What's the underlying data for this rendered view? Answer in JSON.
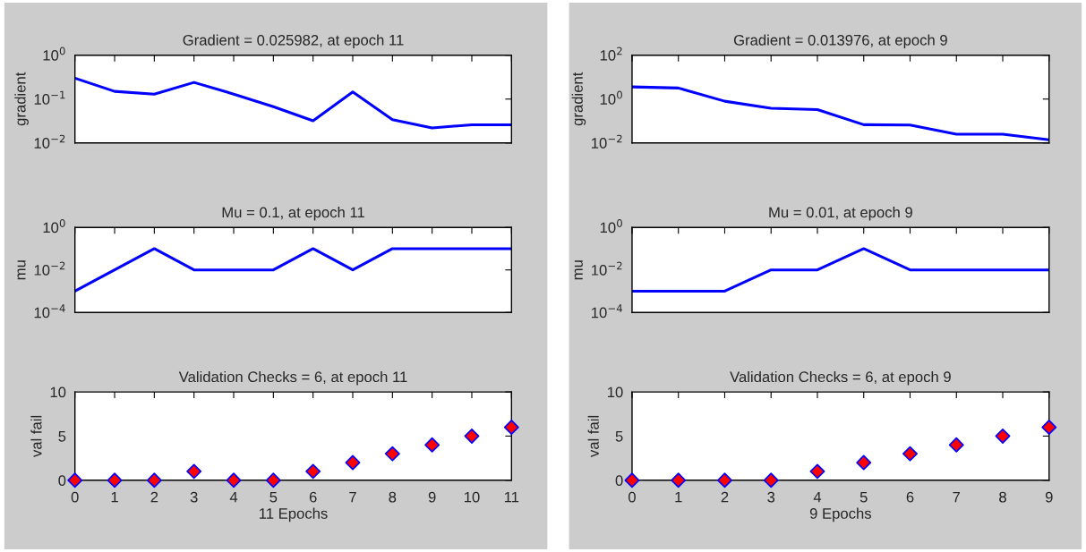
{
  "chart_data": [
    {
      "type": "line",
      "title": "Gradient = 0.025982, at epoch 11",
      "ylabel": "gradient",
      "log": "y",
      "xlim": [
        0,
        11
      ],
      "xticks": [
        0,
        1,
        2,
        3,
        4,
        5,
        6,
        7,
        8,
        9,
        10,
        11
      ],
      "ylim": [
        0.01,
        1
      ],
      "yticks": [
        {
          "value": 0.01,
          "label": "10$^{−2}$"
        },
        {
          "value": 0.1,
          "label": "10$^{−1}$"
        },
        {
          "value": 1,
          "label": "10$^{0}$"
        }
      ],
      "tick_labels": "y",
      "x": [
        0,
        1,
        2,
        3,
        4,
        5,
        6,
        7,
        8,
        9,
        10,
        11
      ],
      "series": [
        {
          "color": "#0000ff",
          "values": [
            0.3,
            0.15,
            0.13,
            0.24,
            0.13,
            0.067,
            0.032,
            0.145,
            0.034,
            0.022,
            0.026,
            0.025982
          ]
        }
      ]
    },
    {
      "type": "line",
      "title": "Gradient = 0.013976, at epoch 9",
      "ylabel": "gradient",
      "log": "y",
      "xlim": [
        0,
        9
      ],
      "xticks": [
        0,
        1,
        2,
        3,
        4,
        5,
        6,
        7,
        8,
        9
      ],
      "ylim": [
        0.01,
        100
      ],
      "yticks": [
        {
          "value": 0.01,
          "label": "10$^{−2}$"
        },
        {
          "value": 1,
          "label": "10$^{0}$"
        },
        {
          "value": 100,
          "label": "10$^{2}$"
        }
      ],
      "tick_labels": "y",
      "x": [
        0,
        1,
        2,
        3,
        4,
        5,
        6,
        7,
        8,
        9
      ],
      "series": [
        {
          "color": "#0000ff",
          "values": [
            3.6,
            3.2,
            0.8,
            0.38,
            0.33,
            0.068,
            0.066,
            0.025,
            0.025,
            0.013976
          ]
        }
      ]
    },
    {
      "type": "line",
      "title": "Mu = 0.1, at epoch 11",
      "ylabel": "mu",
      "log": "y",
      "xlim": [
        0,
        11
      ],
      "xticks": [
        0,
        1,
        2,
        3,
        4,
        5,
        6,
        7,
        8,
        9,
        10,
        11
      ],
      "ylim": [
        0.0001,
        1
      ],
      "yticks": [
        {
          "value": 0.0001,
          "label": "10$^{−4}$"
        },
        {
          "value": 0.01,
          "label": "10$^{−2}$"
        },
        {
          "value": 1,
          "label": "10$^{0}$"
        }
      ],
      "tick_labels": "y",
      "x": [
        0,
        1,
        2,
        3,
        4,
        5,
        6,
        7,
        8,
        9,
        10,
        11
      ],
      "series": [
        {
          "color": "#0000ff",
          "values": [
            0.001,
            0.01,
            0.1,
            0.01,
            0.01,
            0.01,
            0.1,
            0.01,
            0.1,
            0.1,
            0.1,
            0.1
          ]
        }
      ]
    },
    {
      "type": "line",
      "title": "Mu = 0.01, at epoch 9",
      "ylabel": "mu",
      "log": "y",
      "xlim": [
        0,
        9
      ],
      "xticks": [
        0,
        1,
        2,
        3,
        4,
        5,
        6,
        7,
        8,
        9
      ],
      "ylim": [
        0.0001,
        1
      ],
      "yticks": [
        {
          "value": 0.0001,
          "label": "10$^{−4}$"
        },
        {
          "value": 0.01,
          "label": "10$^{−2}$"
        },
        {
          "value": 1,
          "label": "10$^{0}$"
        }
      ],
      "tick_labels": "y",
      "x": [
        0,
        1,
        2,
        3,
        4,
        5,
        6,
        7,
        8,
        9
      ],
      "series": [
        {
          "color": "#0000ff",
          "values": [
            0.001,
            0.001,
            0.001,
            0.01,
            0.01,
            0.1,
            0.01,
            0.01,
            0.01,
            0.01
          ]
        }
      ]
    },
    {
      "type": "scatter",
      "title": "Validation Checks = 6, at epoch 11",
      "ylabel": "val fail",
      "xlabel": "11 Epochs",
      "marker": "diamond",
      "xlim": [
        0,
        11
      ],
      "xticks": [
        0,
        1,
        2,
        3,
        4,
        5,
        6,
        7,
        8,
        9,
        10,
        11
      ],
      "ylim": [
        0,
        10
      ],
      "yticks": [
        0,
        5,
        10
      ],
      "x": [
        0,
        1,
        2,
        3,
        4,
        5,
        6,
        7,
        8,
        9,
        10,
        11
      ],
      "series": [
        {
          "color": "#ff0000",
          "values": [
            0,
            0,
            0,
            1,
            0,
            0,
            1,
            2,
            3,
            4,
            5,
            6
          ]
        }
      ]
    },
    {
      "type": "scatter",
      "title": "Validation Checks = 6, at epoch 9",
      "ylabel": "val fail",
      "xlabel": "9 Epochs",
      "marker": "diamond",
      "xlim": [
        0,
        9
      ],
      "xticks": [
        0,
        1,
        2,
        3,
        4,
        5,
        6,
        7,
        8,
        9
      ],
      "ylim": [
        0,
        10
      ],
      "yticks": [
        0,
        5,
        10
      ],
      "x": [
        0,
        1,
        2,
        3,
        4,
        5,
        6,
        7,
        8,
        9
      ],
      "series": [
        {
          "color": "#ff0000",
          "values": [
            0,
            0,
            0,
            0,
            1,
            2,
            3,
            4,
            5,
            6
          ]
        }
      ]
    }
  ]
}
